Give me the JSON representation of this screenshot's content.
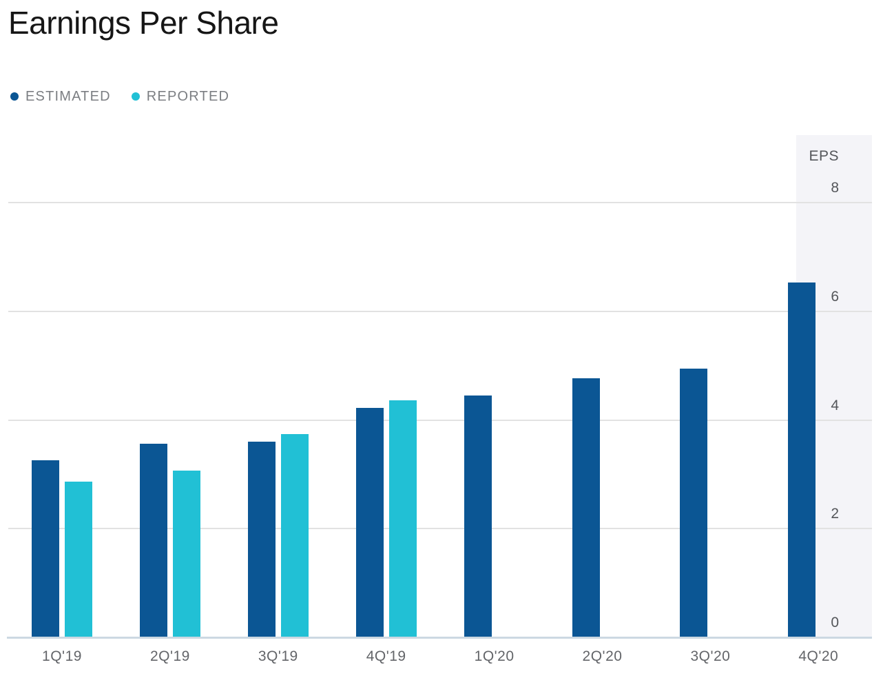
{
  "chart": {
    "title": "Earnings Per Share",
    "unit_label": "EPS"
  },
  "legend": {
    "items": [
      {
        "label": "ESTIMATED",
        "color": "#0b5694"
      },
      {
        "label": "REPORTED",
        "color": "#21c0d5"
      }
    ]
  },
  "chart_data": {
    "type": "bar",
    "title": "Earnings Per Share",
    "categories": [
      "1Q'19",
      "2Q'19",
      "3Q'19",
      "4Q'19",
      "1Q'20",
      "2Q'20",
      "3Q'20",
      "4Q'20"
    ],
    "series": [
      {
        "name": "ESTIMATED",
        "color": "#0b5694",
        "values": [
          3.26,
          3.57,
          3.6,
          4.22,
          4.45,
          4.77,
          4.95,
          6.53
        ]
      },
      {
        "name": "REPORTED",
        "color": "#21c0d5",
        "values": [
          2.86,
          3.07,
          3.74,
          4.36,
          null,
          null,
          null,
          null
        ]
      }
    ],
    "xlabel": "",
    "ylabel": "EPS",
    "yticks": [
      0,
      2,
      4,
      6,
      8
    ],
    "ylim": [
      0,
      9.2
    ],
    "grid": true,
    "legend_position": "top-left",
    "highlight_band": {
      "category": "4Q'20",
      "color": "#f4f4f8"
    },
    "axis_line_color": "#ccd8e2",
    "gridline_color": "#e2e2e2"
  }
}
